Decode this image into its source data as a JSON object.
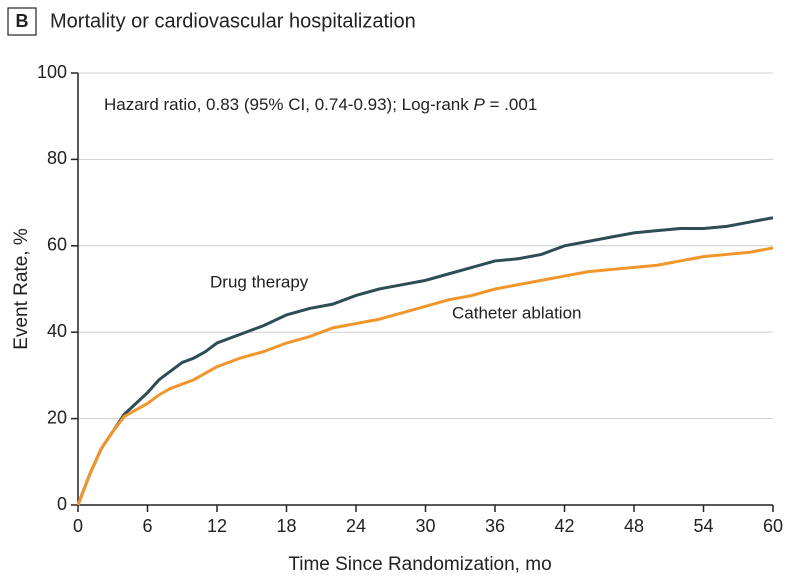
{
  "chart_data": {
    "type": "line",
    "panel_label": "B",
    "title": "Mortality or cardiovascular hospitalization",
    "annotation": [
      "Hazard ratio, 0.83 (95% CI, 0.74-0.93); Log-rank ",
      "P",
      " = .001"
    ],
    "x_label": "Time Since Randomization, mo",
    "y_label": "Event Rate, %",
    "x": [
      0,
      1,
      2,
      3,
      4,
      5,
      6,
      7,
      8,
      9,
      10,
      11,
      12,
      14,
      16,
      18,
      20,
      22,
      24,
      26,
      28,
      30,
      32,
      34,
      36,
      38,
      40,
      42,
      44,
      46,
      48,
      50,
      52,
      54,
      56,
      58,
      60
    ],
    "series": [
      {
        "name": "Drug therapy",
        "color": "#2d4d55",
        "values": [
          0,
          7,
          13,
          17,
          21,
          23.5,
          26,
          29,
          31,
          33,
          34,
          35.5,
          37.5,
          39.5,
          41.5,
          44,
          45.5,
          46.5,
          48.5,
          50,
          51,
          52,
          53.5,
          55,
          56.5,
          57,
          58,
          60,
          61,
          62,
          63,
          63.5,
          64,
          64,
          64.5,
          65.5,
          66.5
        ]
      },
      {
        "name": "Catheter ablation",
        "color": "#f0962a",
        "values": [
          0,
          7,
          13,
          17,
          20.5,
          22,
          23.5,
          25.5,
          27,
          28,
          29,
          30.5,
          32,
          34,
          35.5,
          37.5,
          39,
          41,
          42,
          43,
          44.5,
          46,
          47.5,
          48.5,
          50,
          51,
          52,
          53,
          54,
          54.5,
          55,
          55.5,
          56.5,
          57.5,
          58,
          58.5,
          59.5
        ]
      }
    ],
    "xlim": [
      0,
      60
    ],
    "xticks": [
      0,
      6,
      12,
      18,
      24,
      30,
      36,
      42,
      48,
      54,
      60
    ],
    "ylim": [
      0,
      100
    ],
    "yticks": [
      0,
      20,
      40,
      60,
      80,
      100
    ],
    "grid": true
  }
}
